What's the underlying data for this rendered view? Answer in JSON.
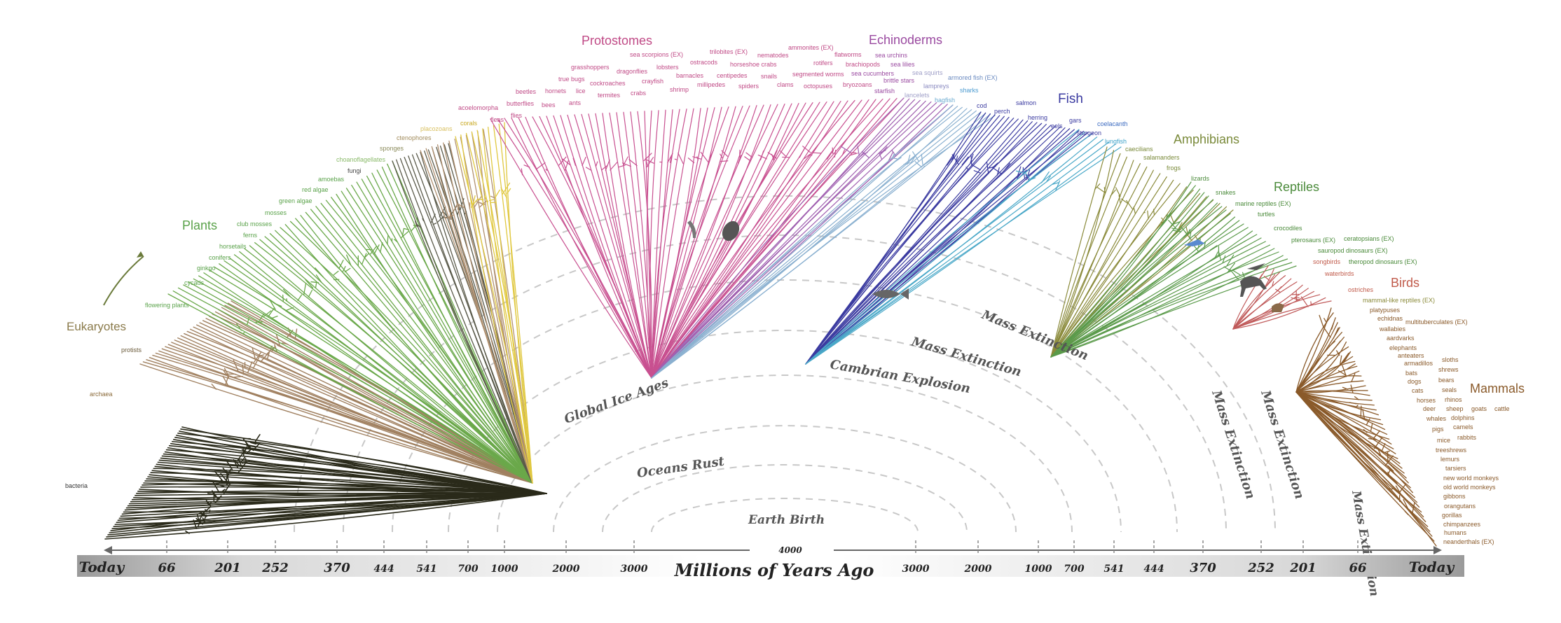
{
  "groups": [
    {
      "key": "eukaryotes",
      "label": "Eukaryotes",
      "color": "#8a7a4a"
    },
    {
      "key": "plants",
      "label": "Plants",
      "color": "#5aa24a"
    },
    {
      "key": "protostomes",
      "label": "Protostomes",
      "color": "#c04a86"
    },
    {
      "key": "echinoderms",
      "label": "Echinoderms",
      "color": "#9a4aa0"
    },
    {
      "key": "fish",
      "label": "Fish",
      "color": "#3a3aa0"
    },
    {
      "key": "amphibians",
      "label": "Amphibians",
      "color": "#7a8a3a"
    },
    {
      "key": "reptiles",
      "label": "Reptiles",
      "color": "#4a8a3a"
    },
    {
      "key": "birds",
      "label": "Birds",
      "color": "#c05a4a"
    },
    {
      "key": "mammals",
      "label": "Mammals",
      "color": "#8a5a2a"
    }
  ],
  "leaves": [
    {
      "t": "bacteria",
      "c": "#333333"
    },
    {
      "t": "archaea",
      "c": "#8a6a3a"
    },
    {
      "t": "protists",
      "c": "#6a5a3a"
    },
    {
      "t": "flowering plants",
      "c": "#5aa24a"
    },
    {
      "t": "cycads",
      "c": "#5aa24a"
    },
    {
      "t": "ginkgo",
      "c": "#5aa24a"
    },
    {
      "t": "conifers",
      "c": "#5aa24a"
    },
    {
      "t": "horsetails",
      "c": "#5aa24a"
    },
    {
      "t": "ferns",
      "c": "#5aa24a"
    },
    {
      "t": "club mosses",
      "c": "#5aa24a"
    },
    {
      "t": "mosses",
      "c": "#5aa24a"
    },
    {
      "t": "green algae",
      "c": "#5aa24a"
    },
    {
      "t": "red algae",
      "c": "#5aa24a"
    },
    {
      "t": "amoebas",
      "c": "#5aa24a"
    },
    {
      "t": "choanoflagellates",
      "c": "#8aba6a"
    },
    {
      "t": "fungi",
      "c": "#444444"
    },
    {
      "t": "sponges",
      "c": "#8a8a5a"
    },
    {
      "t": "ctenophores",
      "c": "#a08a5a"
    },
    {
      "t": "placozoans",
      "c": "#d8c060"
    },
    {
      "t": "corals",
      "c": "#c8a820"
    },
    {
      "t": "acoelomorpha",
      "c": "#c04a86"
    },
    {
      "t": "fleas",
      "c": "#c04a86"
    },
    {
      "t": "butterflies",
      "c": "#c04a86"
    },
    {
      "t": "flies",
      "c": "#c04a86"
    },
    {
      "t": "beetles",
      "c": "#c04a86"
    },
    {
      "t": "bees",
      "c": "#c04a86"
    },
    {
      "t": "hornets",
      "c": "#c04a86"
    },
    {
      "t": "ants",
      "c": "#c04a86"
    },
    {
      "t": "true bugs",
      "c": "#c04a86"
    },
    {
      "t": "lice",
      "c": "#c04a86"
    },
    {
      "t": "grasshoppers",
      "c": "#c04a86"
    },
    {
      "t": "cockroaches",
      "c": "#c04a86"
    },
    {
      "t": "termites",
      "c": "#c04a86"
    },
    {
      "t": "dragonflies",
      "c": "#c04a86"
    },
    {
      "t": "crabs",
      "c": "#c04a86"
    },
    {
      "t": "crayfish",
      "c": "#c04a86"
    },
    {
      "t": "sea scorpions (EX)",
      "c": "#c04a86"
    },
    {
      "t": "lobsters",
      "c": "#c04a86"
    },
    {
      "t": "shrimp",
      "c": "#c04a86"
    },
    {
      "t": "barnacles",
      "c": "#c04a86"
    },
    {
      "t": "ostracods",
      "c": "#c04a86"
    },
    {
      "t": "trilobites (EX)",
      "c": "#c04a86"
    },
    {
      "t": "millipedes",
      "c": "#c04a86"
    },
    {
      "t": "centipedes",
      "c": "#c04a86"
    },
    {
      "t": "horseshoe crabs",
      "c": "#c04a86"
    },
    {
      "t": "spiders",
      "c": "#c04a86"
    },
    {
      "t": "nematodes",
      "c": "#c04a86"
    },
    {
      "t": "snails",
      "c": "#c04a86"
    },
    {
      "t": "clams",
      "c": "#c04a86"
    },
    {
      "t": "ammonites (EX)",
      "c": "#c04a86"
    },
    {
      "t": "segmented worms",
      "c": "#c04a86"
    },
    {
      "t": "rotifers",
      "c": "#c04a86"
    },
    {
      "t": "octopuses",
      "c": "#c04a86"
    },
    {
      "t": "flatworms",
      "c": "#c04a86"
    },
    {
      "t": "brachiopods",
      "c": "#c04a86"
    },
    {
      "t": "bryozoans",
      "c": "#c04a86"
    },
    {
      "t": "sea urchins",
      "c": "#9a4aa0"
    },
    {
      "t": "sea cucumbers",
      "c": "#9a4aa0"
    },
    {
      "t": "sea lilies",
      "c": "#9a4aa0"
    },
    {
      "t": "brittle stars",
      "c": "#9a4aa0"
    },
    {
      "t": "starfish",
      "c": "#9a4aa0"
    },
    {
      "t": "sea squirts",
      "c": "#a0a0c8"
    },
    {
      "t": "lancelets",
      "c": "#a0a0c8"
    },
    {
      "t": "lampreys",
      "c": "#8a8ac0"
    },
    {
      "t": "hagfish",
      "c": "#6aaad0"
    },
    {
      "t": "armored fish (EX)",
      "c": "#6a8ac0"
    },
    {
      "t": "sharks",
      "c": "#4a9ad0"
    },
    {
      "t": "cod",
      "c": "#3a3aa0"
    },
    {
      "t": "perch",
      "c": "#3a3aa0"
    },
    {
      "t": "salmon",
      "c": "#3a3aa0"
    },
    {
      "t": "herring",
      "c": "#3a3aa0"
    },
    {
      "t": "eels",
      "c": "#3a3aa0"
    },
    {
      "t": "gars",
      "c": "#3a3aa0"
    },
    {
      "t": "sturgeon",
      "c": "#3a3aa0"
    },
    {
      "t": "coelacanth",
      "c": "#3a6ac0"
    },
    {
      "t": "lungfish",
      "c": "#3aa0c8"
    },
    {
      "t": "caecilians",
      "c": "#7a8a3a"
    },
    {
      "t": "salamanders",
      "c": "#7a8a3a"
    },
    {
      "t": "frogs",
      "c": "#7a8a3a"
    },
    {
      "t": "lizards",
      "c": "#4a8a3a"
    },
    {
      "t": "snakes",
      "c": "#4a8a3a"
    },
    {
      "t": "marine reptiles (EX)",
      "c": "#4a8a3a"
    },
    {
      "t": "turtles",
      "c": "#4a8a3a"
    },
    {
      "t": "crocodiles",
      "c": "#4a8a3a"
    },
    {
      "t": "pterosaurs (EX)",
      "c": "#4a8a3a"
    },
    {
      "t": "ceratopsians (EX)",
      "c": "#4a8a3a"
    },
    {
      "t": "sauropod dinosaurs (EX)",
      "c": "#4a8a3a"
    },
    {
      "t": "songbirds",
      "c": "#c05a4a"
    },
    {
      "t": "theropod dinosaurs (EX)",
      "c": "#4a8a3a"
    },
    {
      "t": "waterbirds",
      "c": "#c05a4a"
    },
    {
      "t": "ostriches",
      "c": "#c05a4a"
    },
    {
      "t": "mammal-like reptiles (EX)",
      "c": "#8a8a3a"
    },
    {
      "t": "platypuses",
      "c": "#8a5a2a"
    },
    {
      "t": "echidnas",
      "c": "#8a5a2a"
    },
    {
      "t": "multituberculates (EX)",
      "c": "#8a5a2a"
    },
    {
      "t": "wallabies",
      "c": "#8a5a2a"
    },
    {
      "t": "aardvarks",
      "c": "#8a5a2a"
    },
    {
      "t": "elephants",
      "c": "#8a5a2a"
    },
    {
      "t": "anteaters",
      "c": "#8a5a2a"
    },
    {
      "t": "sloths",
      "c": "#8a5a2a"
    },
    {
      "t": "armadillos",
      "c": "#8a5a2a"
    },
    {
      "t": "bats",
      "c": "#8a5a2a"
    },
    {
      "t": "shrews",
      "c": "#8a5a2a"
    },
    {
      "t": "dogs",
      "c": "#8a5a2a"
    },
    {
      "t": "bears",
      "c": "#8a5a2a"
    },
    {
      "t": "cats",
      "c": "#8a5a2a"
    },
    {
      "t": "seals",
      "c": "#8a5a2a"
    },
    {
      "t": "horses",
      "c": "#8a5a2a"
    },
    {
      "t": "rhinos",
      "c": "#8a5a2a"
    },
    {
      "t": "deer",
      "c": "#8a5a2a"
    },
    {
      "t": "sheep",
      "c": "#8a5a2a"
    },
    {
      "t": "goats",
      "c": "#8a5a2a"
    },
    {
      "t": "cattle",
      "c": "#8a5a2a"
    },
    {
      "t": "whales",
      "c": "#8a5a2a"
    },
    {
      "t": "dolphins",
      "c": "#8a5a2a"
    },
    {
      "t": "pigs",
      "c": "#8a5a2a"
    },
    {
      "t": "camels",
      "c": "#8a5a2a"
    },
    {
      "t": "mice",
      "c": "#8a5a2a"
    },
    {
      "t": "rabbits",
      "c": "#8a5a2a"
    },
    {
      "t": "treeshrews",
      "c": "#8a5a2a"
    },
    {
      "t": "lemurs",
      "c": "#8a5a2a"
    },
    {
      "t": "tarsiers",
      "c": "#8a5a2a"
    },
    {
      "t": "new world monkeys",
      "c": "#8a5a2a"
    },
    {
      "t": "old world monkeys",
      "c": "#8a5a2a"
    },
    {
      "t": "gibbons",
      "c": "#8a5a2a"
    },
    {
      "t": "orangutans",
      "c": "#8a5a2a"
    },
    {
      "t": "gorillas",
      "c": "#8a5a2a"
    },
    {
      "t": "chimpanzees",
      "c": "#8a5a2a"
    },
    {
      "t": "humans",
      "c": "#8a5a2a"
    },
    {
      "t": "neanderthals (EX)",
      "c": "#8a5a2a"
    }
  ],
  "events": [
    {
      "key": "earth-birth",
      "label": "Earth Birth"
    },
    {
      "key": "oceans-rust",
      "label": "Oceans Rust"
    },
    {
      "key": "global-ice-ages",
      "label": "Global Ice Ages"
    },
    {
      "key": "cambrian-explosion",
      "label": "Cambrian Explosion"
    },
    {
      "key": "mass-extinction-1",
      "label": "Mass Extinction"
    },
    {
      "key": "mass-extinction-2",
      "label": "Mass Extinction"
    },
    {
      "key": "mass-extinction-3",
      "label": "Mass Extinction"
    },
    {
      "key": "mass-extinction-4",
      "label": "Mass Extinction"
    },
    {
      "key": "mass-extinction-5",
      "label": "Mass Extinction"
    }
  ],
  "axis": {
    "title": "Millions of Years Ago",
    "center_value": "4000",
    "left_ticks": [
      "Today",
      "66",
      "201",
      "252",
      "370",
      "444",
      "541",
      "700",
      "1000",
      "2000",
      "3000"
    ],
    "right_ticks": [
      "3000",
      "2000",
      "1000",
      "700",
      "541",
      "444",
      "370",
      "252",
      "201",
      "66",
      "Today"
    ]
  }
}
